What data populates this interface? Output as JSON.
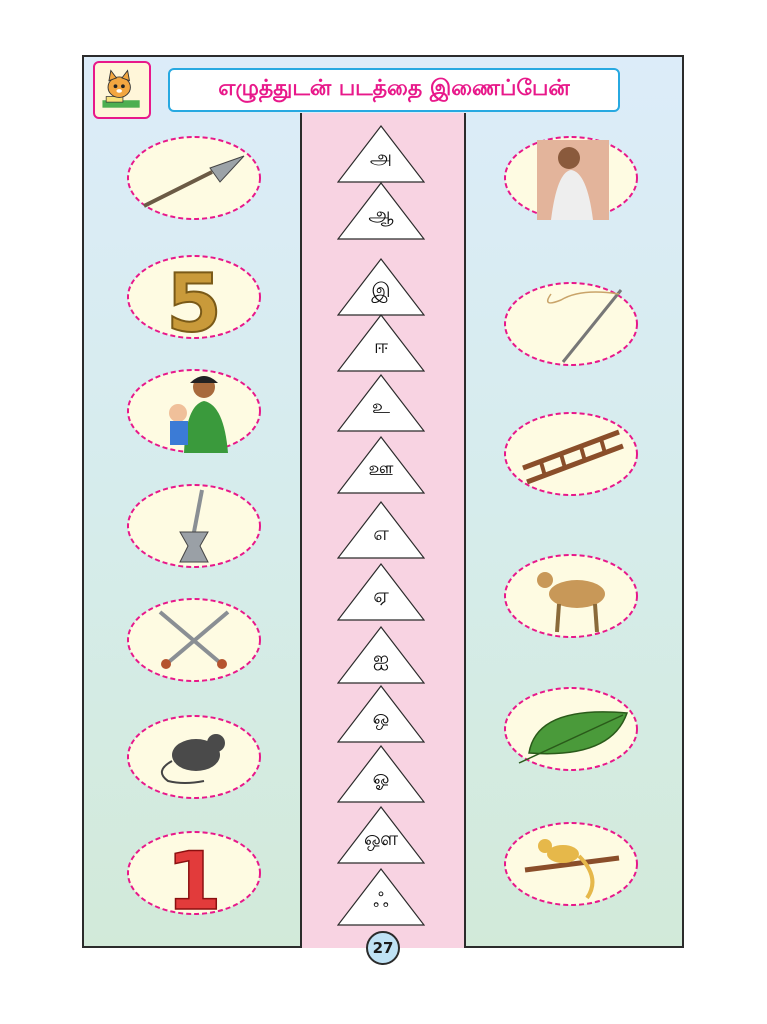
{
  "title": "எழுத்துடன் படத்தை இணைப்பேன்",
  "page_number": "27",
  "letters": [
    "அ",
    "ஆ",
    "இ",
    "ஈ",
    "உ",
    "ஊ",
    "எ",
    "ஏ",
    "ஐ",
    "ஒ",
    "ஓ",
    "ஔ",
    "ஃ"
  ],
  "left_pictures": [
    "spear-picture",
    "number-five-picture",
    "mother-child-picture",
    "mortar-pestle-picture",
    "crossed-swords-picture",
    "rat-picture",
    "number-one-picture"
  ],
  "right_pictures": [
    "old-woman-picture",
    "needle-picture",
    "ladder-picture",
    "goat-picture",
    "leaf-picture",
    "squirrel-picture"
  ],
  "colors": {
    "title_text": "#e8188a",
    "title_border": "#27a9e1",
    "oval_border": "#e8188a",
    "oval_fill": "#fefbe2",
    "center_column": "#f8d3e2"
  }
}
